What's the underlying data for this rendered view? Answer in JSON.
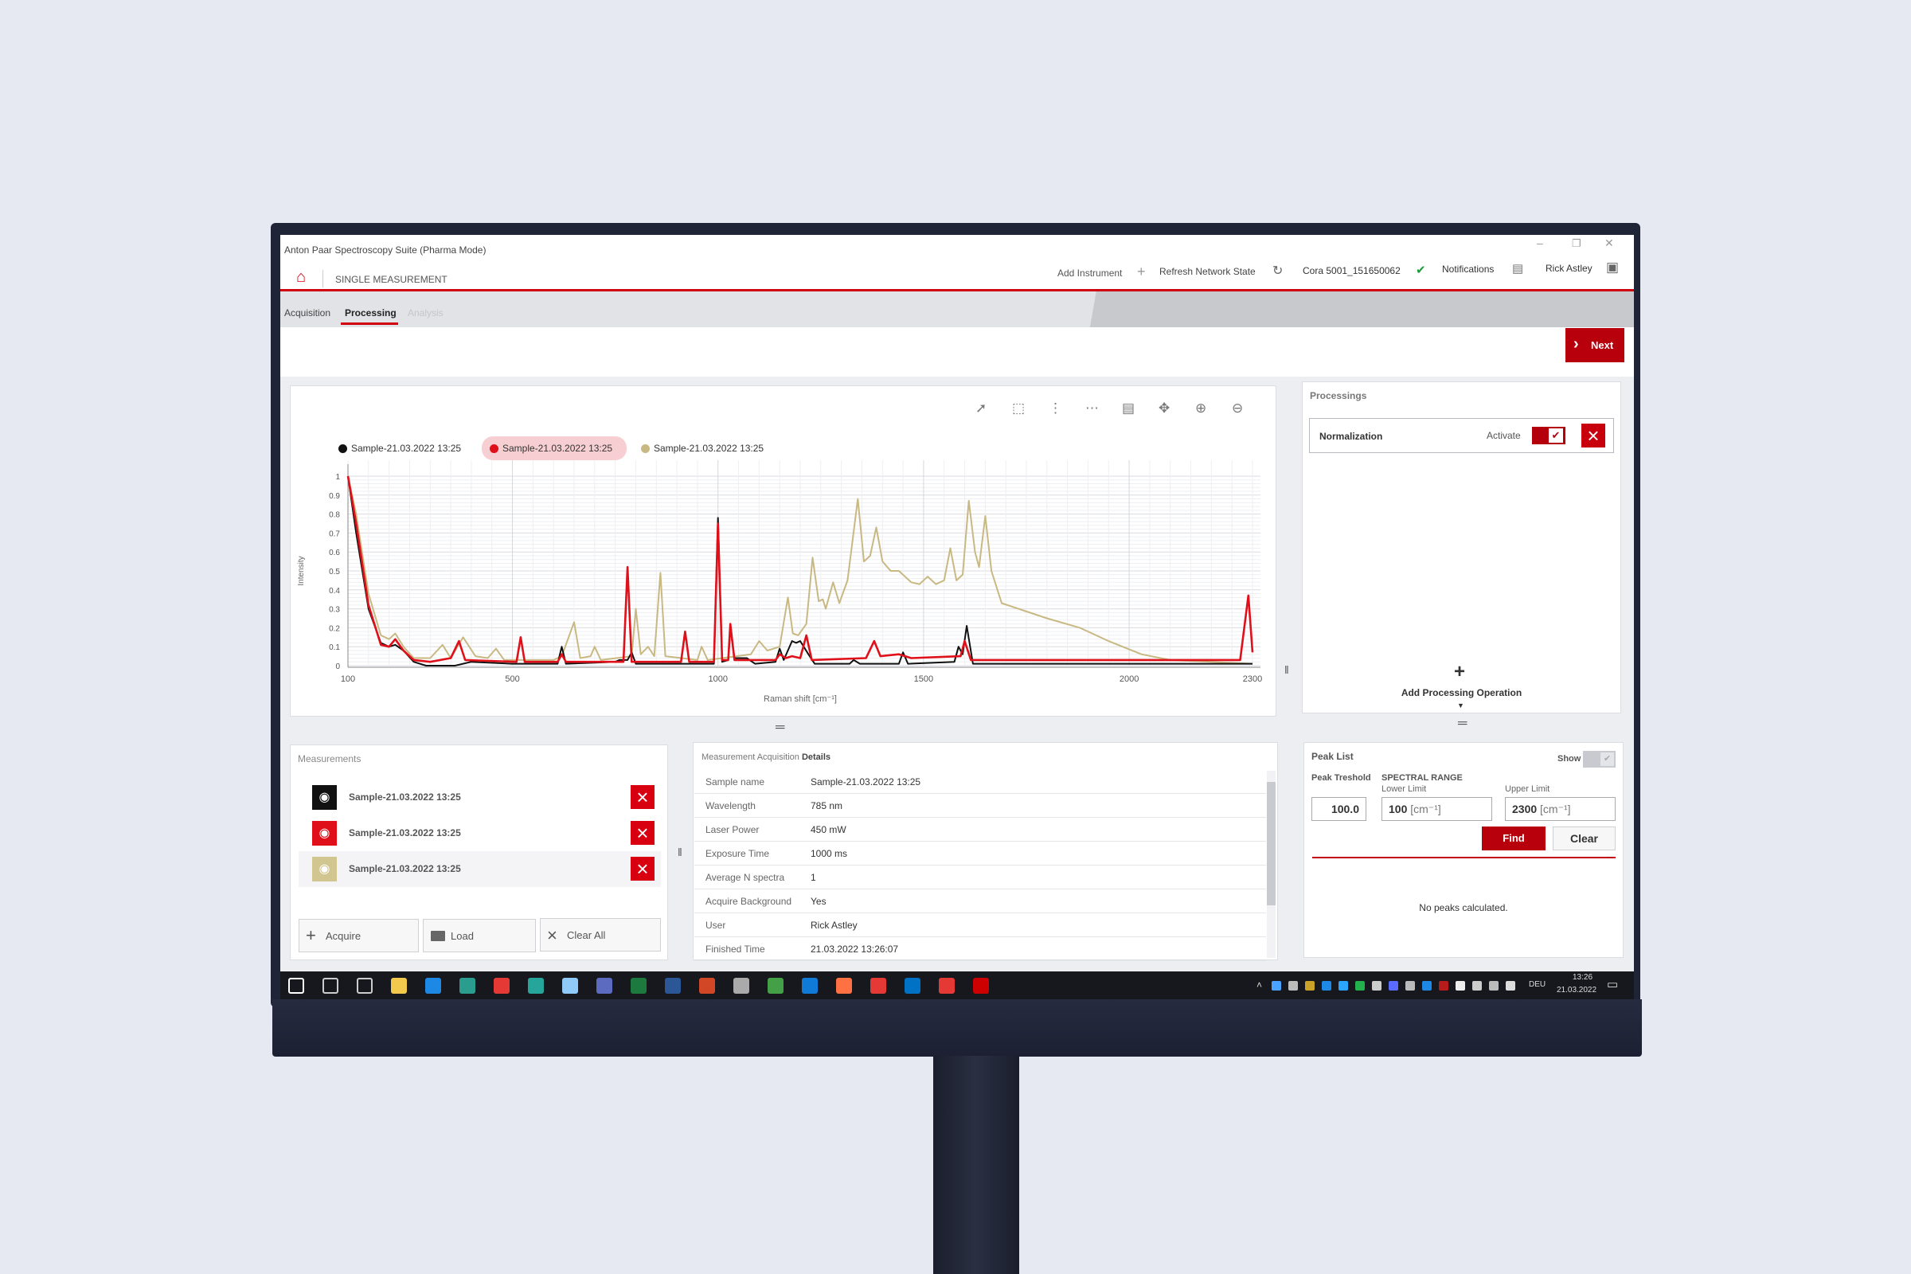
{
  "window": {
    "title": "Anton Paar Spectroscopy Suite (Pharma Mode)",
    "minimize": "–",
    "restore": "❐",
    "close": "✕"
  },
  "header": {
    "page": "SINGLE MEASUREMENT",
    "add_instrument": "Add Instrument",
    "refresh": "Refresh Network State",
    "instrument": "Cora 5001_151650062",
    "notifications": "Notifications",
    "user": "Rick Astley"
  },
  "tabs": [
    {
      "label": "Acquisition"
    },
    {
      "label": "Processing",
      "active": true
    },
    {
      "label": "Analysis",
      "disabled": true
    }
  ],
  "next_label": "Next",
  "colors": {
    "accent": "#c00010",
    "black_series": "#111111",
    "red_series": "#e0101a",
    "tan_series": "#c8b882"
  },
  "chart_data": {
    "type": "line",
    "xlabel": "Raman shift [cm⁻¹]",
    "ylabel": "Intensity",
    "xlim": [
      100,
      2300
    ],
    "ylim": [
      0,
      1
    ],
    "xticks": [
      100,
      500,
      1000,
      1500,
      2000,
      2300
    ],
    "yticks": [
      0,
      0.1,
      0.2,
      0.3,
      0.4,
      0.5,
      0.6,
      0.7,
      0.8,
      0.9,
      1
    ],
    "grid": true,
    "legend_position": "top-left",
    "series": [
      {
        "name": "Sample-21.03.2022 13:25",
        "color": "#111111",
        "points": [
          [
            100,
            1
          ],
          [
            120,
            0.7
          ],
          [
            150,
            0.3
          ],
          [
            180,
            0.12
          ],
          [
            200,
            0.1
          ],
          [
            215,
            0.11
          ],
          [
            235,
            0.08
          ],
          [
            260,
            0.02
          ],
          [
            290,
            0
          ],
          [
            360,
            0
          ],
          [
            400,
            0.02
          ],
          [
            500,
            0.01
          ],
          [
            610,
            0.01
          ],
          [
            620,
            0.1
          ],
          [
            630,
            0.01
          ],
          [
            750,
            0.02
          ],
          [
            760,
            0.03
          ],
          [
            780,
            0.03
          ],
          [
            790,
            0.07
          ],
          [
            800,
            0.01
          ],
          [
            990,
            0.01
          ],
          [
            1000,
            0.78
          ],
          [
            1010,
            0.02
          ],
          [
            1025,
            0.03
          ],
          [
            1030,
            0.2
          ],
          [
            1040,
            0.04
          ],
          [
            1070,
            0.04
          ],
          [
            1090,
            0.01
          ],
          [
            1140,
            0.02
          ],
          [
            1150,
            0.09
          ],
          [
            1160,
            0.03
          ],
          [
            1180,
            0.13
          ],
          [
            1190,
            0.12
          ],
          [
            1200,
            0.13
          ],
          [
            1220,
            0.06
          ],
          [
            1235,
            0.01
          ],
          [
            1320,
            0.01
          ],
          [
            1330,
            0.03
          ],
          [
            1345,
            0.01
          ],
          [
            1440,
            0.01
          ],
          [
            1450,
            0.07
          ],
          [
            1462,
            0.01
          ],
          [
            1575,
            0.02
          ],
          [
            1585,
            0.1
          ],
          [
            1595,
            0.06
          ],
          [
            1605,
            0.21
          ],
          [
            1620,
            0.01
          ],
          [
            2300,
            0.01
          ]
        ]
      },
      {
        "name": "Sample-21.03.2022 13:25",
        "color": "#e0101a",
        "highlighted": true,
        "points": [
          [
            100,
            1
          ],
          [
            120,
            0.75
          ],
          [
            150,
            0.32
          ],
          [
            180,
            0.11
          ],
          [
            200,
            0.1
          ],
          [
            215,
            0.14
          ],
          [
            235,
            0.08
          ],
          [
            260,
            0.03
          ],
          [
            300,
            0.02
          ],
          [
            350,
            0.04
          ],
          [
            370,
            0.13
          ],
          [
            385,
            0.03
          ],
          [
            510,
            0.02
          ],
          [
            520,
            0.15
          ],
          [
            530,
            0.02
          ],
          [
            610,
            0.02
          ],
          [
            620,
            0.06
          ],
          [
            630,
            0.02
          ],
          [
            770,
            0.02
          ],
          [
            780,
            0.52
          ],
          [
            790,
            0.02
          ],
          [
            910,
            0.02
          ],
          [
            920,
            0.18
          ],
          [
            930,
            0.02
          ],
          [
            990,
            0.02
          ],
          [
            1000,
            0.75
          ],
          [
            1010,
            0.03
          ],
          [
            1025,
            0.03
          ],
          [
            1030,
            0.22
          ],
          [
            1040,
            0.03
          ],
          [
            1140,
            0.03
          ],
          [
            1150,
            0.06
          ],
          [
            1165,
            0.04
          ],
          [
            1180,
            0.05
          ],
          [
            1200,
            0.04
          ],
          [
            1215,
            0.16
          ],
          [
            1228,
            0.03
          ],
          [
            1360,
            0.04
          ],
          [
            1380,
            0.13
          ],
          [
            1395,
            0.05
          ],
          [
            1440,
            0.06
          ],
          [
            1470,
            0.04
          ],
          [
            1590,
            0.05
          ],
          [
            1600,
            0.13
          ],
          [
            1615,
            0.03
          ],
          [
            2270,
            0.03
          ],
          [
            2290,
            0.37
          ],
          [
            2300,
            0.07
          ]
        ]
      },
      {
        "name": "Sample-21.03.2022 13:25",
        "color": "#c8b882",
        "points": [
          [
            100,
            1
          ],
          [
            120,
            0.8
          ],
          [
            150,
            0.38
          ],
          [
            180,
            0.16
          ],
          [
            200,
            0.14
          ],
          [
            215,
            0.17
          ],
          [
            235,
            0.1
          ],
          [
            260,
            0.04
          ],
          [
            300,
            0.04
          ],
          [
            330,
            0.11
          ],
          [
            350,
            0.04
          ],
          [
            380,
            0.15
          ],
          [
            410,
            0.05
          ],
          [
            440,
            0.04
          ],
          [
            460,
            0.09
          ],
          [
            480,
            0.03
          ],
          [
            600,
            0.03
          ],
          [
            620,
            0.05
          ],
          [
            650,
            0.23
          ],
          [
            665,
            0.04
          ],
          [
            690,
            0.05
          ],
          [
            700,
            0.1
          ],
          [
            715,
            0.03
          ],
          [
            790,
            0.05
          ],
          [
            800,
            0.3
          ],
          [
            812,
            0.06
          ],
          [
            830,
            0.1
          ],
          [
            845,
            0.05
          ],
          [
            860,
            0.49
          ],
          [
            872,
            0.05
          ],
          [
            950,
            0.03
          ],
          [
            960,
            0.1
          ],
          [
            975,
            0.03
          ],
          [
            1080,
            0.06
          ],
          [
            1100,
            0.13
          ],
          [
            1120,
            0.08
          ],
          [
            1150,
            0.1
          ],
          [
            1170,
            0.36
          ],
          [
            1182,
            0.17
          ],
          [
            1195,
            0.16
          ],
          [
            1215,
            0.22
          ],
          [
            1230,
            0.57
          ],
          [
            1245,
            0.34
          ],
          [
            1255,
            0.35
          ],
          [
            1262,
            0.3
          ],
          [
            1280,
            0.44
          ],
          [
            1295,
            0.33
          ],
          [
            1315,
            0.45
          ],
          [
            1340,
            0.88
          ],
          [
            1355,
            0.55
          ],
          [
            1370,
            0.58
          ],
          [
            1385,
            0.73
          ],
          [
            1400,
            0.55
          ],
          [
            1420,
            0.5
          ],
          [
            1440,
            0.5
          ],
          [
            1470,
            0.44
          ],
          [
            1490,
            0.43
          ],
          [
            1510,
            0.47
          ],
          [
            1530,
            0.43
          ],
          [
            1550,
            0.45
          ],
          [
            1565,
            0.62
          ],
          [
            1580,
            0.45
          ],
          [
            1595,
            0.48
          ],
          [
            1610,
            0.87
          ],
          [
            1625,
            0.6
          ],
          [
            1635,
            0.52
          ],
          [
            1650,
            0.79
          ],
          [
            1665,
            0.5
          ],
          [
            1690,
            0.33
          ],
          [
            1800,
            0.25
          ],
          [
            1880,
            0.2
          ],
          [
            1950,
            0.13
          ],
          [
            2030,
            0.06
          ],
          [
            2100,
            0.03
          ],
          [
            2200,
            0.02
          ],
          [
            2300,
            0.01
          ]
        ]
      }
    ]
  },
  "chart_toolbar": [
    "pointer-icon",
    "select-box-icon",
    "select-x-icon",
    "select-y-icon",
    "export-icon",
    "pan-icon",
    "zoom-in-icon",
    "zoom-out-icon"
  ],
  "processings": {
    "title": "Processings",
    "items": [
      {
        "name": "Normalization",
        "activate_label": "Activate",
        "active": true
      }
    ],
    "add_label": "Add Processing Operation"
  },
  "measurements": {
    "title": "Measurements",
    "items": [
      {
        "name": "Sample-21.03.2022 13:25",
        "color": "#111111"
      },
      {
        "name": "Sample-21.03.2022 13:25",
        "color": "#e0101a"
      },
      {
        "name": "Sample-21.03.2022 13:25",
        "color": "#d2c690"
      }
    ],
    "acquire": "Acquire",
    "load": "Load",
    "clear_all": "Clear All"
  },
  "details": {
    "title_a": "Measurement Acquisition ",
    "title_b": "Details",
    "rows": [
      {
        "label": "Sample name",
        "value": "Sample-21.03.2022 13:25"
      },
      {
        "label": "Wavelength",
        "value": "785 nm"
      },
      {
        "label": "Laser Power",
        "value": "450 mW"
      },
      {
        "label": "Exposure Time",
        "value": "1000 ms"
      },
      {
        "label": "Average N spectra",
        "value": "1"
      },
      {
        "label": "Acquire Background",
        "value": "Yes"
      },
      {
        "label": "User",
        "value": "Rick Astley"
      },
      {
        "label": "Finished Time",
        "value": "21.03.2022 13:26:07"
      }
    ]
  },
  "peaklist": {
    "title": "Peak List",
    "show_label": "Show",
    "show": false,
    "threshold_label": "Peak Treshold",
    "threshold": "100.0",
    "range_label": "SPECTRAL RANGE",
    "lower_label": "Lower Limit",
    "lower": "100",
    "upper_label": "Upper Limit",
    "upper": "2300",
    "unit": "[cm⁻¹]",
    "find": "Find",
    "clear": "Clear",
    "empty": "No peaks calculated."
  },
  "taskbar": {
    "lang": "DEU",
    "time": "13:26",
    "date": "21.03.2022",
    "apps": [
      "windows-start-icon",
      "search-icon",
      "task-view-icon",
      "file-explorer-icon",
      "maps-icon",
      "edge-icon",
      "chrome-icon",
      "app-icon",
      "app-icon",
      "app-icon",
      "excel-icon",
      "word-icon",
      "powerpoint-icon",
      "app-icon",
      "app-icon",
      "webex-icon",
      "firefox-icon",
      "app-icon",
      "outlook-icon",
      "app-icon",
      "acrobat-icon"
    ]
  }
}
